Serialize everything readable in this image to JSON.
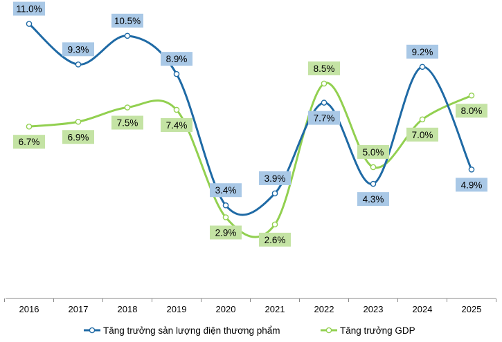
{
  "chart_data": {
    "type": "line",
    "x": [
      "2016",
      "2017",
      "2018",
      "2019",
      "2020",
      "2021",
      "2022",
      "2023",
      "2024",
      "2025"
    ],
    "series": [
      {
        "name": "Tăng trưởng sản lượng điện thương phẩm",
        "values": [
          11.0,
          9.3,
          10.5,
          8.9,
          3.4,
          3.9,
          7.7,
          4.3,
          9.2,
          4.9
        ],
        "labels": [
          "11.0%",
          "9.3%",
          "10.5%",
          "8.9%",
          "3.4%",
          "3.9%",
          "7.7%",
          "4.3%",
          "9.2%",
          "4.9%"
        ],
        "color": "#1f6aa5",
        "label_bg": "#a9c8e6"
      },
      {
        "name": "Tăng trưởng GDP",
        "values": [
          6.7,
          6.9,
          7.5,
          7.4,
          2.9,
          2.6,
          8.5,
          5.0,
          7.0,
          8.0
        ],
        "labels": [
          "6.7%",
          "6.9%",
          "7.5%",
          "7.4%",
          "2.9%",
          "2.6%",
          "8.5%",
          "5.0%",
          "7.0%",
          "8.0%"
        ],
        "color": "#92d050",
        "label_bg": "#c4e3a4"
      }
    ],
    "ylim": [
      -0.5,
      12.0
    ],
    "legend_position": "bottom",
    "grid": false
  }
}
